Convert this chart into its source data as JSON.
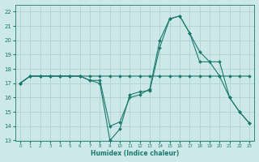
{
  "xlabel": "Humidex (Indice chaleur)",
  "x": [
    0,
    1,
    2,
    3,
    4,
    5,
    6,
    7,
    8,
    9,
    10,
    11,
    12,
    13,
    14,
    15,
    16,
    17,
    18,
    19,
    20,
    21,
    22,
    23
  ],
  "s1": [
    17.0,
    17.5,
    17.5,
    17.5,
    17.5,
    17.5,
    17.5,
    17.2,
    17.0,
    13.0,
    13.8,
    16.2,
    16.4,
    16.5,
    19.5,
    21.5,
    21.7,
    20.5,
    19.2,
    18.5,
    17.5,
    16.0,
    15.0,
    14.2
  ],
  "s2": [
    17.0,
    17.5,
    17.5,
    17.5,
    17.5,
    17.5,
    17.5,
    17.2,
    17.2,
    14.0,
    14.3,
    16.0,
    16.2,
    16.6,
    20.0,
    21.5,
    21.7,
    20.5,
    18.5,
    18.5,
    18.5,
    16.0,
    15.0,
    14.2
  ],
  "s3": [
    17.0,
    17.5,
    17.5,
    17.5,
    17.5,
    17.5,
    17.5,
    17.5,
    17.5,
    17.5,
    17.5,
    17.5,
    17.5,
    17.5,
    17.5,
    17.5,
    17.5,
    17.5,
    17.5,
    17.5,
    17.5,
    17.5,
    17.5,
    17.5
  ],
  "line_color": "#1a7a6e",
  "bg_color": "#cde8e8",
  "grid_color": "#aacece",
  "ylim": [
    13,
    22.5
  ],
  "xlim": [
    -0.5,
    23.5
  ],
  "yticks": [
    13,
    14,
    15,
    16,
    17,
    18,
    19,
    20,
    21,
    22
  ],
  "xticks": [
    0,
    1,
    2,
    3,
    4,
    5,
    6,
    7,
    8,
    9,
    10,
    11,
    12,
    13,
    14,
    15,
    16,
    17,
    18,
    19,
    20,
    21,
    22,
    23
  ]
}
